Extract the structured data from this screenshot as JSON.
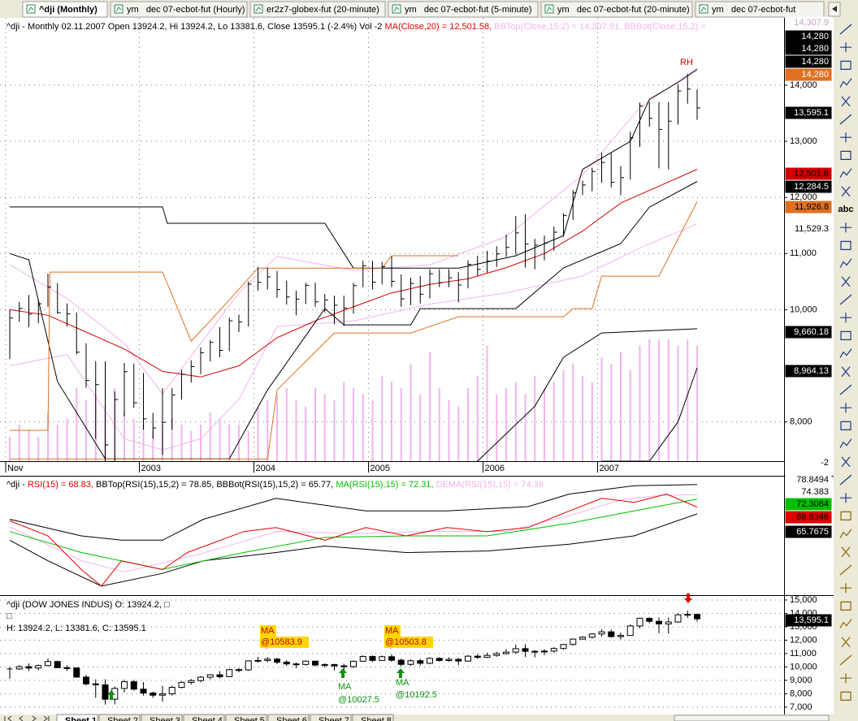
{
  "tabs": [
    "^dji (Monthly)",
    "ym   dec 07-ecbot-fut (Hourly)",
    "er2z7-globex-fut (20-minute)",
    "ym   dec 07-ecbot-fut (5-minute)",
    "ym   dec 07-ecbot-fut (20-minute)",
    "ym   dec 07-ecbot-fut"
  ],
  "sheets": [
    "Sheet 1",
    "Sheet 2",
    "Sheet 3",
    "Sheet 4",
    "Sheet 5",
    "Sheet 6",
    "Sheet 7",
    "Sheet 8"
  ],
  "toolbar_text": "abc",
  "chart_data": [
    {
      "type": "ohlc",
      "header": [
        {
          "text": "^dji - Monthly 02.11.2007 Open 13924.2, Hi 13924.2, Lo 13381.6, Close 13595.1 (-2.4%) Vol -2 ",
          "color": "#000000"
        },
        {
          "text": "MA(Close,20) = 12,501.58, ",
          "color": "#e00000"
        },
        {
          "text": "BBTop(Close,15,2) = 14,307.91, ",
          "color": "#f2b4ee"
        },
        {
          "text": "BBBot(Close,15,2) = ",
          "color": "#f2b4ee"
        }
      ],
      "categories": [
        "Nov",
        null,
        null,
        null,
        null,
        null,
        null,
        null,
        null,
        null,
        null,
        null,
        null,
        null,
        "2003",
        null,
        null,
        null,
        null,
        null,
        null,
        null,
        null,
        null,
        null,
        null,
        "2004",
        null,
        null,
        null,
        null,
        null,
        null,
        null,
        null,
        null,
        null,
        null,
        "2005",
        null,
        null,
        null,
        null,
        null,
        null,
        null,
        null,
        null,
        null,
        null,
        "2006",
        null,
        null,
        null,
        null,
        null,
        null,
        null,
        null,
        null,
        null,
        null,
        "2007",
        null,
        null,
        null,
        null,
        null,
        null,
        null,
        null,
        null,
        null
      ],
      "high": [
        10000,
        10140,
        10260,
        10180,
        10640,
        10470,
        10110,
        9950,
        9400,
        9080,
        9080,
        8540,
        9050,
        9040,
        8870,
        8160,
        8600,
        8600,
        8930,
        9100,
        9330,
        9460,
        9690,
        9860,
        9910,
        10500,
        10760,
        10750,
        10690,
        10520,
        10340,
        10480,
        10480,
        10280,
        10250,
        10250,
        10480,
        10870,
        10870,
        10850,
        10950,
        10630,
        10570,
        10600,
        10720,
        10720,
        10720,
        10670,
        10880,
        10960,
        11050,
        11130,
        11340,
        11670,
        11700,
        11260,
        11320,
        11480,
        11720,
        12130,
        12300,
        12530,
        12800,
        12790,
        12560,
        13170,
        13690,
        13700,
        13700,
        13700,
        14020,
        14200,
        13924.2
      ],
      "low": [
        9120,
        9780,
        9690,
        9760,
        10050,
        9930,
        9700,
        9200,
        8610,
        7700,
        7190,
        7200,
        8100,
        8250,
        7860,
        7700,
        7410,
        7860,
        8400,
        8700,
        8850,
        9080,
        9150,
        9260,
        9600,
        9700,
        10340,
        10360,
        10210,
        10090,
        9900,
        10100,
        10050,
        9950,
        9740,
        9710,
        9930,
        10400,
        10360,
        10450,
        10400,
        10050,
        10080,
        10110,
        10200,
        10400,
        10400,
        10130,
        10380,
        10600,
        10660,
        10760,
        10940,
        10980,
        10750,
        10720,
        10880,
        11050,
        11300,
        11600,
        12040,
        12110,
        12260,
        12180,
        12040,
        12320,
        12900,
        13260,
        12520,
        12500,
        13300,
        13670,
        13381.6
      ],
      "close": [
        9852,
        10022,
        9920,
        10106,
        10404,
        9946,
        9925,
        9243,
        8737,
        8664,
        7592,
        8397,
        8896,
        8342,
        8054,
        7891,
        7992,
        8480,
        8850,
        8985,
        9234,
        9416,
        9275,
        9801,
        9782,
        10454,
        10488,
        10584,
        10358,
        10226,
        10188,
        10435,
        10140,
        10174,
        10080,
        10027,
        10428,
        10783,
        10490,
        10766,
        10504,
        10193,
        10467,
        10275,
        10641,
        10482,
        10569,
        10440,
        10806,
        10718,
        10865,
        10993,
        11109,
        11367,
        11168,
        11150,
        11186,
        11381,
        11679,
        12081,
        12221,
        12463,
        12622,
        12268,
        12354,
        13063,
        13628,
        13409,
        13212,
        13358,
        13896,
        13930,
        13595.1
      ],
      "volume": [
        20,
        30,
        25,
        20,
        40,
        30,
        35,
        60,
        50,
        55,
        45,
        60,
        40,
        35,
        30,
        25,
        30,
        35,
        30,
        25,
        30,
        40,
        35,
        30,
        30,
        25,
        45,
        50,
        55,
        60,
        50,
        45,
        60,
        55,
        50,
        65,
        60,
        55,
        50,
        70,
        65,
        60,
        80,
        55,
        90,
        60,
        50,
        45,
        60,
        70,
        95,
        55,
        60,
        65,
        55,
        70,
        60,
        65,
        75,
        80,
        70,
        65,
        85,
        80,
        90,
        75,
        95,
        100,
        100,
        100,
        95,
        100,
        95
      ],
      "volume_color": "#f2b4ee",
      "bar_color": "#000000",
      "lines": [
        {
          "color": "#f2b4ee",
          "x": [
            0,
            6,
            12,
            16,
            20,
            24,
            28,
            36,
            44,
            52,
            60,
            66,
            72
          ],
          "values": [
            10800,
            10200,
            9400,
            8500,
            9400,
            10300,
            10950,
            10700,
            10800,
            11300,
            12400,
            13600,
            14307.9
          ]
        },
        {
          "color": "#f2b4ee",
          "x": [
            0,
            6,
            12,
            16,
            20,
            24,
            28,
            36,
            44,
            52,
            60,
            66,
            72
          ],
          "values": [
            9000,
            9200,
            7700,
            7500,
            7700,
            8400,
            9700,
            9800,
            10100,
            10300,
            10600,
            11100,
            11529.3
          ]
        },
        {
          "color": "#d00000",
          "x": [
            0,
            4,
            8,
            12,
            16,
            20,
            24,
            28,
            32,
            36,
            40,
            44,
            48,
            52,
            56,
            60,
            64,
            68,
            72
          ],
          "values": [
            10000,
            9900,
            9600,
            9300,
            8900,
            8800,
            9000,
            9500,
            9800,
            10050,
            10300,
            10450,
            10550,
            10750,
            11000,
            11400,
            11900,
            12200,
            12501.6
          ]
        },
        {
          "color": "#000000",
          "x": [
            0,
            16,
            16.5,
            33,
            36,
            47,
            53,
            58,
            60,
            65,
            67,
            70,
            72
          ],
          "values": [
            11830,
            11830,
            11540,
            11540,
            10740,
            10740,
            10960,
            11320,
            12500,
            13000,
            13750,
            14050,
            14280
          ]
        },
        {
          "color": "#000000",
          "x": [
            0,
            2,
            5,
            10,
            23,
            27,
            33,
            35,
            42,
            43,
            53,
            58,
            64,
            67,
            72
          ],
          "values": [
            11000,
            10888,
            8716,
            7342,
            7342,
            8571,
            10019,
            9730,
            9730,
            10019,
            10019,
            10743,
            11177,
            11828,
            12284.5
          ]
        },
        {
          "color": "#000000",
          "x": [
            49,
            55,
            58,
            62,
            72
          ],
          "values": [
            7300,
            8280,
            9150,
            9585,
            9660.18
          ]
        },
        {
          "color": "#000000",
          "x": [
            62,
            67,
            70,
            72
          ],
          "values": [
            7300,
            7300,
            8000,
            8964.13
          ]
        },
        {
          "color": "#e07020",
          "x": [
            0,
            4,
            4.2,
            16,
            19,
            21,
            26,
            39,
            40,
            47
          ],
          "values": [
            7850,
            7850,
            10670,
            10670,
            9440,
            9800,
            10740,
            10740,
            10960,
            10960
          ]
        },
        {
          "color": "#e07020",
          "x": [
            0,
            27,
            28,
            34,
            42,
            47,
            58,
            59,
            61,
            62,
            68,
            72
          ],
          "values": [
            7340,
            7340,
            8570,
            9585,
            9585,
            9874,
            9874,
            10019,
            10019,
            10598,
            10598,
            11926.8
          ]
        }
      ],
      "ylim": [
        7300,
        15200
      ],
      "yticks": [
        {
          "value": 8000,
          "label": "8,000"
        },
        {
          "value": 10000,
          "label": "10,000"
        },
        {
          "value": 11000,
          "label": "11,000"
        },
        {
          "value": 12000,
          "label": "12,000"
        },
        {
          "value": 13000,
          "label": "13,000"
        },
        {
          "value": 14000,
          "label": "14,000"
        }
      ],
      "grid": true,
      "value_boxes": [
        {
          "label": "14,307.9",
          "bg": "#ffffff",
          "fg": "#c8a0c4"
        },
        {
          "label": "14,280",
          "bg": "#000000",
          "fg": "#ffffff"
        },
        {
          "label": "14,280",
          "bg": "#000000",
          "fg": "#ffffff"
        },
        {
          "label": "14,280",
          "bg": "#000000",
          "fg": "#ffffff"
        },
        {
          "label": "14,280",
          "bg": "#e07020",
          "fg": "#ffffff"
        },
        {
          "label": "13,595.1",
          "bg": "#000000",
          "fg": "#ffffff"
        },
        {
          "label": "12,501.6",
          "bg": "#d00000",
          "fg": "#000000"
        },
        {
          "label": "12,284.5",
          "bg": "#000000",
          "fg": "#ffffff"
        },
        {
          "label": "11,926.8",
          "bg": "#e07020",
          "fg": "#000000"
        },
        {
          "label": "11,529.3",
          "bg": "#ffffff",
          "fg": "#000000"
        },
        {
          "label": "9,660.18",
          "bg": "#000000",
          "fg": "#ffffff"
        },
        {
          "label": "8,964.13",
          "bg": "#000000",
          "fg": "#ffffff"
        },
        {
          "label": "-2",
          "bg": "#ffffff",
          "fg": "#000000"
        }
      ],
      "annotations": [
        "RH"
      ]
    },
    {
      "type": "line",
      "header": [
        {
          "text": "^dji - ",
          "color": "#000000"
        },
        {
          "text": "RSI(15) = 68.83, ",
          "color": "#e00000"
        },
        {
          "text": "BBTop(RSI(15),15,2) = 78.85, ",
          "color": "#000000"
        },
        {
          "text": "BBBot(RSI(15),15,2) = 65.77, ",
          "color": "#000000"
        },
        {
          "text": "MA(RSI(15),15) = 72.31, ",
          "color": "#00c000"
        },
        {
          "text": "DEMA(RSI(15),15) = 74.38",
          "color": "#f2b4ee"
        }
      ],
      "ylim": [
        30,
        82
      ],
      "lines": [
        {
          "color": "#f2b4ee",
          "x": [
            0,
            7.5,
            12,
            20,
            28,
            36,
            44,
            52,
            58.6,
            64,
            68,
            72
          ],
          "values": [
            60,
            45,
            40,
            48,
            58,
            57,
            58,
            58,
            65,
            72,
            74,
            74.38
          ]
        },
        {
          "color": "#000000",
          "x": [
            0,
            7.5,
            11.7,
            16,
            20.3,
            27.9,
            37.3,
            45.8,
            54.3,
            58.6,
            65.4,
            72
          ],
          "values": [
            63.4,
            56,
            54.1,
            54.1,
            63.4,
            72.7,
            67.1,
            67.1,
            69,
            74.6,
            78.3,
            78.85
          ]
        },
        {
          "color": "#000000",
          "x": [
            0,
            4,
            9.6,
            16,
            20.3,
            27.9,
            33,
            41.5,
            50,
            58.6,
            65.4,
            72
          ],
          "values": [
            54.1,
            44.9,
            33.7,
            39.3,
            44.9,
            48.6,
            51.5,
            48.6,
            49.3,
            52.3,
            56,
            65.77
          ]
        },
        {
          "color": "#00c000",
          "x": [
            0,
            7.5,
            16,
            24.5,
            33,
            41.5,
            50,
            58.6,
            65.4,
            72
          ],
          "values": [
            57.9,
            48.6,
            41.1,
            48.6,
            55.3,
            56,
            56,
            61.6,
            67.1,
            72.31
          ]
        },
        {
          "color": "#e00000",
          "x": [
            0,
            4,
            7.5,
            9.6,
            11.7,
            16,
            18.6,
            24.5,
            27.9,
            33,
            37.3,
            41.5,
            45.8,
            50,
            54.3,
            58.6,
            62,
            65.4,
            68.8,
            72
          ],
          "values": [
            62.7,
            56,
            41,
            33.7,
            44.9,
            41,
            48.6,
            57.9,
            59.7,
            54.1,
            59.7,
            56,
            59.7,
            57.9,
            59.7,
            67.1,
            72.7,
            70.9,
            74.6,
            68.83
          ]
        }
      ],
      "value_boxes": [
        {
          "label": "78.8494",
          "bg": "#ffffff",
          "fg": "#000000"
        },
        {
          "label": "74.383",
          "bg": "#ffffff",
          "fg": "#000000"
        },
        {
          "label": "72.3084",
          "bg": "#00c000",
          "fg": "#000000"
        },
        {
          "label": "68.8346",
          "bg": "#e00000",
          "fg": "#000000"
        },
        {
          "label": "65.7675",
          "bg": "#000000",
          "fg": "#ffffff"
        }
      ]
    },
    {
      "type": "candlestick",
      "header": [
        "^dji (DOW JONES INDUS) O: 13924.2, □",
        "□",
        "H: 13924.2, L: 13381.6, C: 13595.1"
      ],
      "ylim": [
        6450,
        15180
      ],
      "yticks": [
        {
          "value": 15000,
          "label": "15,000"
        },
        {
          "value": 14000,
          "label": "14,000"
        },
        {
          "value": 13000,
          "label": "13,000"
        },
        {
          "value": 12000,
          "label": "12,000"
        },
        {
          "value": 11000,
          "label": "11,000"
        },
        {
          "value": 10000,
          "label": "10,000"
        },
        {
          "value": 9000,
          "label": "9,000"
        },
        {
          "value": 8000,
          "label": "8,000"
        },
        {
          "value": 7000,
          "label": "7,000"
        }
      ],
      "grid": true,
      "value_boxes": [
        {
          "label": "13,595.1",
          "bg": "#000000",
          "fg": "#ffffff"
        }
      ],
      "annotations": [
        "MA",
        "@10583.9",
        "MA",
        "@10503.8",
        "MA",
        "@10027.5",
        "MA",
        "@10192.5"
      ]
    }
  ]
}
